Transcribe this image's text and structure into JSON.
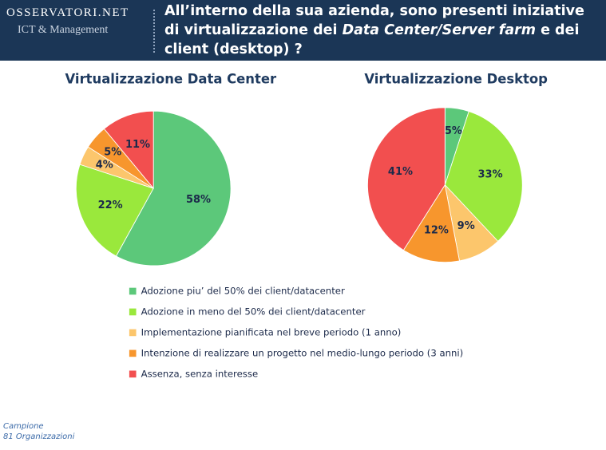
{
  "header": {
    "logo_name": "OSSERVATORI.NET",
    "logo_sub": "ICT & Management",
    "question": [
      "All’interno della sua azienda, sono presenti iniziative di virtualizzazione dei ",
      "Data Center/Server farm",
      " e dei client (desktop) ?"
    ]
  },
  "chart_data": [
    {
      "type": "pie",
      "title": "Virtualizzazione Data Center",
      "values": [
        58,
        22,
        4,
        5,
        11
      ],
      "value_labels": [
        "58%",
        "22%",
        "4%",
        "5%",
        "11%"
      ]
    },
    {
      "type": "pie",
      "title": "Virtualizzazione Desktop",
      "values": [
        5,
        33,
        9,
        12,
        41
      ],
      "value_labels": [
        "5%",
        "33%",
        "9%",
        "12%",
        "41%"
      ]
    }
  ],
  "legend": {
    "items": [
      {
        "label": "Adozione piu’ del 50% dei client/datacenter",
        "color": "#5cc87a"
      },
      {
        "label": "Adozione in meno del 50% dei client/datacenter",
        "color": "#9ae83c"
      },
      {
        "label": "Implementazione pianificata nel breve periodo (1 anno)",
        "color": "#fcc66c"
      },
      {
        "label": "Intenzione di realizzare un progetto nel medio-lungo periodo (3 anni)",
        "color": "#f7962d"
      },
      {
        "label": "Assenza, senza interesse",
        "color": "#f24f4f"
      }
    ]
  },
  "footnote": [
    "Campione",
    "81 Organizzazioni"
  ]
}
